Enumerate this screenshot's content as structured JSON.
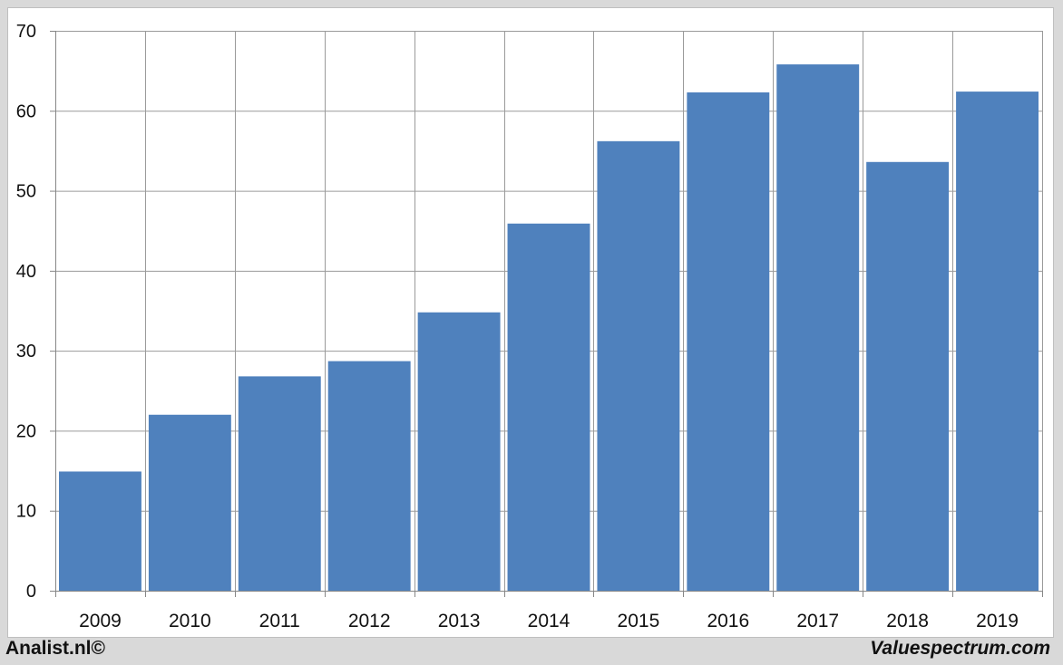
{
  "chart_data": {
    "type": "bar",
    "categories": [
      "2009",
      "2010",
      "2011",
      "2012",
      "2013",
      "2014",
      "2015",
      "2016",
      "2017",
      "2018",
      "2019"
    ],
    "values": [
      14.9,
      22.0,
      26.8,
      28.7,
      34.8,
      45.9,
      56.2,
      62.3,
      65.8,
      53.6,
      62.4
    ],
    "yticks": [
      0,
      10,
      20,
      30,
      40,
      50,
      60,
      70
    ],
    "ylim": [
      0,
      70
    ],
    "title": "",
    "xlabel": "",
    "ylabel": "",
    "grid": true,
    "legend": "none",
    "bar_color": "#4f81bd"
  },
  "footer": {
    "left_text": "Analist.nl©",
    "right_text": "Valuespectrum.com"
  }
}
